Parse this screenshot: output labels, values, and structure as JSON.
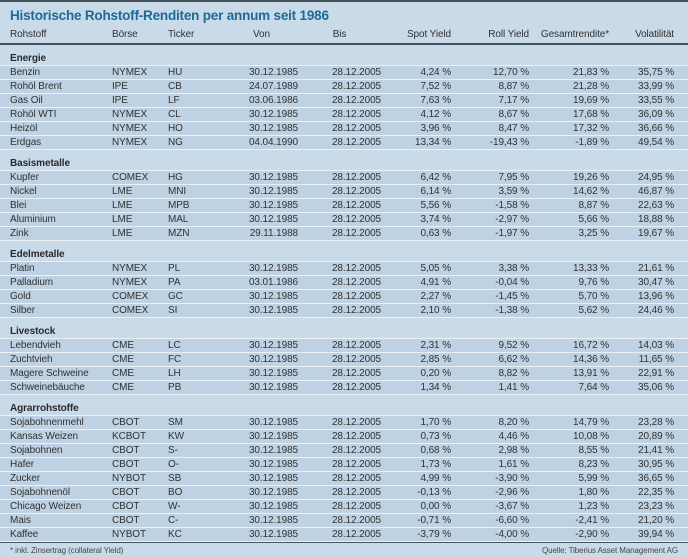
{
  "colors": {
    "background": "#c9dae9",
    "row_background": "#bed2e3",
    "separator": "#e9f1f7",
    "rule": "#47525a",
    "title": "#1a6b96"
  },
  "chart_data": {
    "type": "table",
    "title": "Historische Rohstoff-Renditen per annum seit 1986",
    "columns": [
      "Rohstoff",
      "Börse",
      "Ticker",
      "Von",
      "Bis",
      "Spot Yield",
      "Roll Yield",
      "Gesamtrendite*",
      "Volatilität"
    ],
    "sections": [
      {
        "name": "Energie",
        "rows": [
          [
            "Benzin",
            "NYMEX",
            "HU",
            "30.12.1985",
            "28.12.2005",
            "4,24 %",
            "12,70 %",
            "21,83 %",
            "35,75 %"
          ],
          [
            "Rohöl Brent",
            "IPE",
            "CB",
            "24.07.1989",
            "28.12.2005",
            "7,52 %",
            "8,87 %",
            "21,28 %",
            "33,99 %"
          ],
          [
            "Gas Oil",
            "IPE",
            "LF",
            "03.06.1986",
            "28.12.2005",
            "7,63 %",
            "7,17 %",
            "19,69 %",
            "33,55 %"
          ],
          [
            "Rohöl WTI",
            "NYMEX",
            "CL",
            "30.12.1985",
            "28.12.2005",
            "4,12 %",
            "8,67 %",
            "17,68 %",
            "36,09 %"
          ],
          [
            "Heizöl",
            "NYMEX",
            "HO",
            "30.12.1985",
            "28.12.2005",
            "3,96 %",
            "8,47 %",
            "17,32 %",
            "36,66 %"
          ],
          [
            "Erdgas",
            "NYMEX",
            "NG",
            "04.04.1990",
            "28.12.2005",
            "13,34 %",
            "-19,43 %",
            "-1,89 %",
            "49,54 %"
          ]
        ]
      },
      {
        "name": "Basismetalle",
        "rows": [
          [
            "Kupfer",
            "COMEX",
            "HG",
            "30.12.1985",
            "28.12.2005",
            "6,42 %",
            "7,95 %",
            "19,26 %",
            "24,95 %"
          ],
          [
            "Nickel",
            "LME",
            "MNI",
            "30.12.1985",
            "28.12.2005",
            "6,14 %",
            "3,59 %",
            "14,62 %",
            "46,87 %"
          ],
          [
            "Blei",
            "LME",
            "MPB",
            "30.12.1985",
            "28.12.2005",
            "5,56 %",
            "-1,58 %",
            "8,87 %",
            "22,63 %"
          ],
          [
            "Aluminium",
            "LME",
            "MAL",
            "30.12.1985",
            "28.12.2005",
            "3,74 %",
            "-2,97 %",
            "5,66 %",
            "18,88 %"
          ],
          [
            "Zink",
            "LME",
            "MZN",
            "29.11.1988",
            "28.12.2005",
            "0,63 %",
            "-1,97 %",
            "3,25 %",
            "19,67 %"
          ]
        ]
      },
      {
        "name": "Edelmetalle",
        "rows": [
          [
            "Platin",
            "NYMEX",
            "PL",
            "30.12.1985",
            "28.12.2005",
            "5,05 %",
            "3,38 %",
            "13,33 %",
            "21,61 %"
          ],
          [
            "Palladium",
            "NYMEX",
            "PA",
            "03.01.1986",
            "28.12.2005",
            "4,91 %",
            "-0,04 %",
            "9,76 %",
            "30,47 %"
          ],
          [
            "Gold",
            "COMEX",
            "GC",
            "30.12.1985",
            "28.12.2005",
            "2,27 %",
            "-1,45 %",
            "5,70 %",
            "13,96 %"
          ],
          [
            "Silber",
            "COMEX",
            "SI",
            "30.12.1985",
            "28.12.2005",
            "2,10 %",
            "-1,38 %",
            "5,62 %",
            "24,46 %"
          ]
        ]
      },
      {
        "name": "Livestock",
        "rows": [
          [
            "Lebendvieh",
            "CME",
            "LC",
            "30.12.1985",
            "28.12.2005",
            "2,31 %",
            "9,52 %",
            "16,72 %",
            "14,03 %"
          ],
          [
            "Zuchtvieh",
            "CME",
            "FC",
            "30.12.1985",
            "28.12.2005",
            "2,85 %",
            "6,62 %",
            "14,36 %",
            "11,65 %"
          ],
          [
            "Magere Schweine",
            "CME",
            "LH",
            "30.12.1985",
            "28.12.2005",
            "0,20 %",
            "8,82 %",
            "13,91 %",
            "22,91 %"
          ],
          [
            "Schweinebäuche",
            "CME",
            "PB",
            "30.12.1985",
            "28.12.2005",
            "1,34 %",
            "1,41 %",
            "7,64 %",
            "35,06 %"
          ]
        ]
      },
      {
        "name": "Agrarrohstoffe",
        "rows": [
          [
            "Sojabohnenmehl",
            "CBOT",
            "SM",
            "30.12.1985",
            "28.12.2005",
            "1,70 %",
            "8,20 %",
            "14,79 %",
            "23,28 %"
          ],
          [
            "Kansas Weizen",
            "KCBOT",
            "KW",
            "30.12.1985",
            "28.12.2005",
            "0,73 %",
            "4,46 %",
            "10,08 %",
            "20,89 %"
          ],
          [
            "Sojabohnen",
            "CBOT",
            "S-",
            "30.12.1985",
            "28.12.2005",
            "0,68 %",
            "2,98 %",
            "8,55 %",
            "21,41 %"
          ],
          [
            "Hafer",
            "CBOT",
            "O-",
            "30.12.1985",
            "28.12.2005",
            "1,73 %",
            "1,61 %",
            "8,23 %",
            "30,95 %"
          ],
          [
            "Zucker",
            "NYBOT",
            "SB",
            "30.12.1985",
            "28.12.2005",
            "4,99 %",
            "-3,90 %",
            "5,99 %",
            "36,65 %"
          ],
          [
            "Sojabohnenöl",
            "CBOT",
            "BO",
            "30.12.1985",
            "28.12.2005",
            "-0,13 %",
            "-2,96 %",
            "1,80 %",
            "22,35 %"
          ],
          [
            "Chicago Weizen",
            "CBOT",
            "W-",
            "30.12.1985",
            "28.12.2005",
            "0,00 %",
            "-3,67 %",
            "1,23 %",
            "23,23 %"
          ],
          [
            "Mais",
            "CBOT",
            "C-",
            "30.12.1985",
            "28.12.2005",
            "-0,71 %",
            "-6,60 %",
            "-2,41 %",
            "21,20 %"
          ],
          [
            "Kaffee",
            "NYBOT",
            "KC",
            "30.12.1985",
            "28.12.2005",
            "-3,79 %",
            "-4,00 %",
            "-2,90 %",
            "39,94 %"
          ]
        ]
      }
    ],
    "footnote": "* inkl. Zinsertrag (collateral Yield)",
    "source": "Quelle: Tiberius Asset Management AG"
  }
}
